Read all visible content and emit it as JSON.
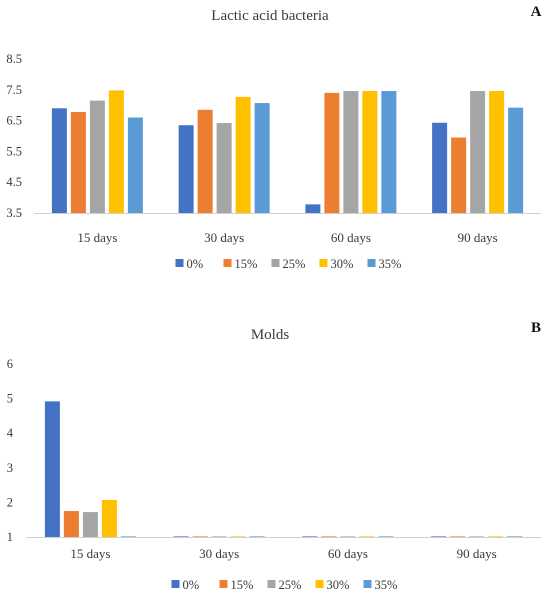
{
  "colors": {
    "0%": "#4472C4",
    "15%": "#ED7D31",
    "25%": "#A5A5A5",
    "30%": "#FFC000",
    "35%": "#5B9BD5"
  },
  "chart_data": [
    {
      "panel": "A",
      "type": "bar",
      "title": "Lactic acid bacteria",
      "xlabel": "",
      "ylabel": "",
      "ylim": [
        3.5,
        8.5
      ],
      "yticks": [
        "3.5",
        "4.5",
        "5.5",
        "6.5",
        "7.5",
        "8.5"
      ],
      "legend_position": "bottom",
      "grid": false,
      "categories": [
        "15 days",
        "30 days",
        "60 days",
        "90 days"
      ],
      "series": [
        {
          "name": "0%",
          "values": [
            6.9,
            6.35,
            3.78,
            6.43
          ]
        },
        {
          "name": "15%",
          "values": [
            6.78,
            6.85,
            7.4,
            5.95
          ]
        },
        {
          "name": "25%",
          "values": [
            7.15,
            6.42,
            7.46,
            7.46
          ]
        },
        {
          "name": "30%",
          "values": [
            7.48,
            7.27,
            7.46,
            7.46
          ]
        },
        {
          "name": "35%",
          "values": [
            6.6,
            7.07,
            7.46,
            6.92
          ]
        }
      ]
    },
    {
      "panel": "B",
      "type": "bar",
      "title": "Molds",
      "xlabel": "",
      "ylabel": "",
      "ylim": [
        1,
        6
      ],
      "yticks": [
        "1",
        "2",
        "3",
        "4",
        "5",
        "6"
      ],
      "legend_position": "bottom",
      "grid": false,
      "categories": [
        "15 days",
        "30 days",
        "60 days",
        "90 days"
      ],
      "series": [
        {
          "name": "0%",
          "values": [
            4.92,
            1,
            1,
            1
          ]
        },
        {
          "name": "15%",
          "values": [
            1.75,
            1,
            1,
            1
          ]
        },
        {
          "name": "25%",
          "values": [
            1.72,
            1,
            1,
            1
          ]
        },
        {
          "name": "30%",
          "values": [
            2.07,
            1,
            1,
            1
          ]
        },
        {
          "name": "35%",
          "values": [
            1,
            1,
            1,
            1
          ]
        }
      ]
    }
  ]
}
